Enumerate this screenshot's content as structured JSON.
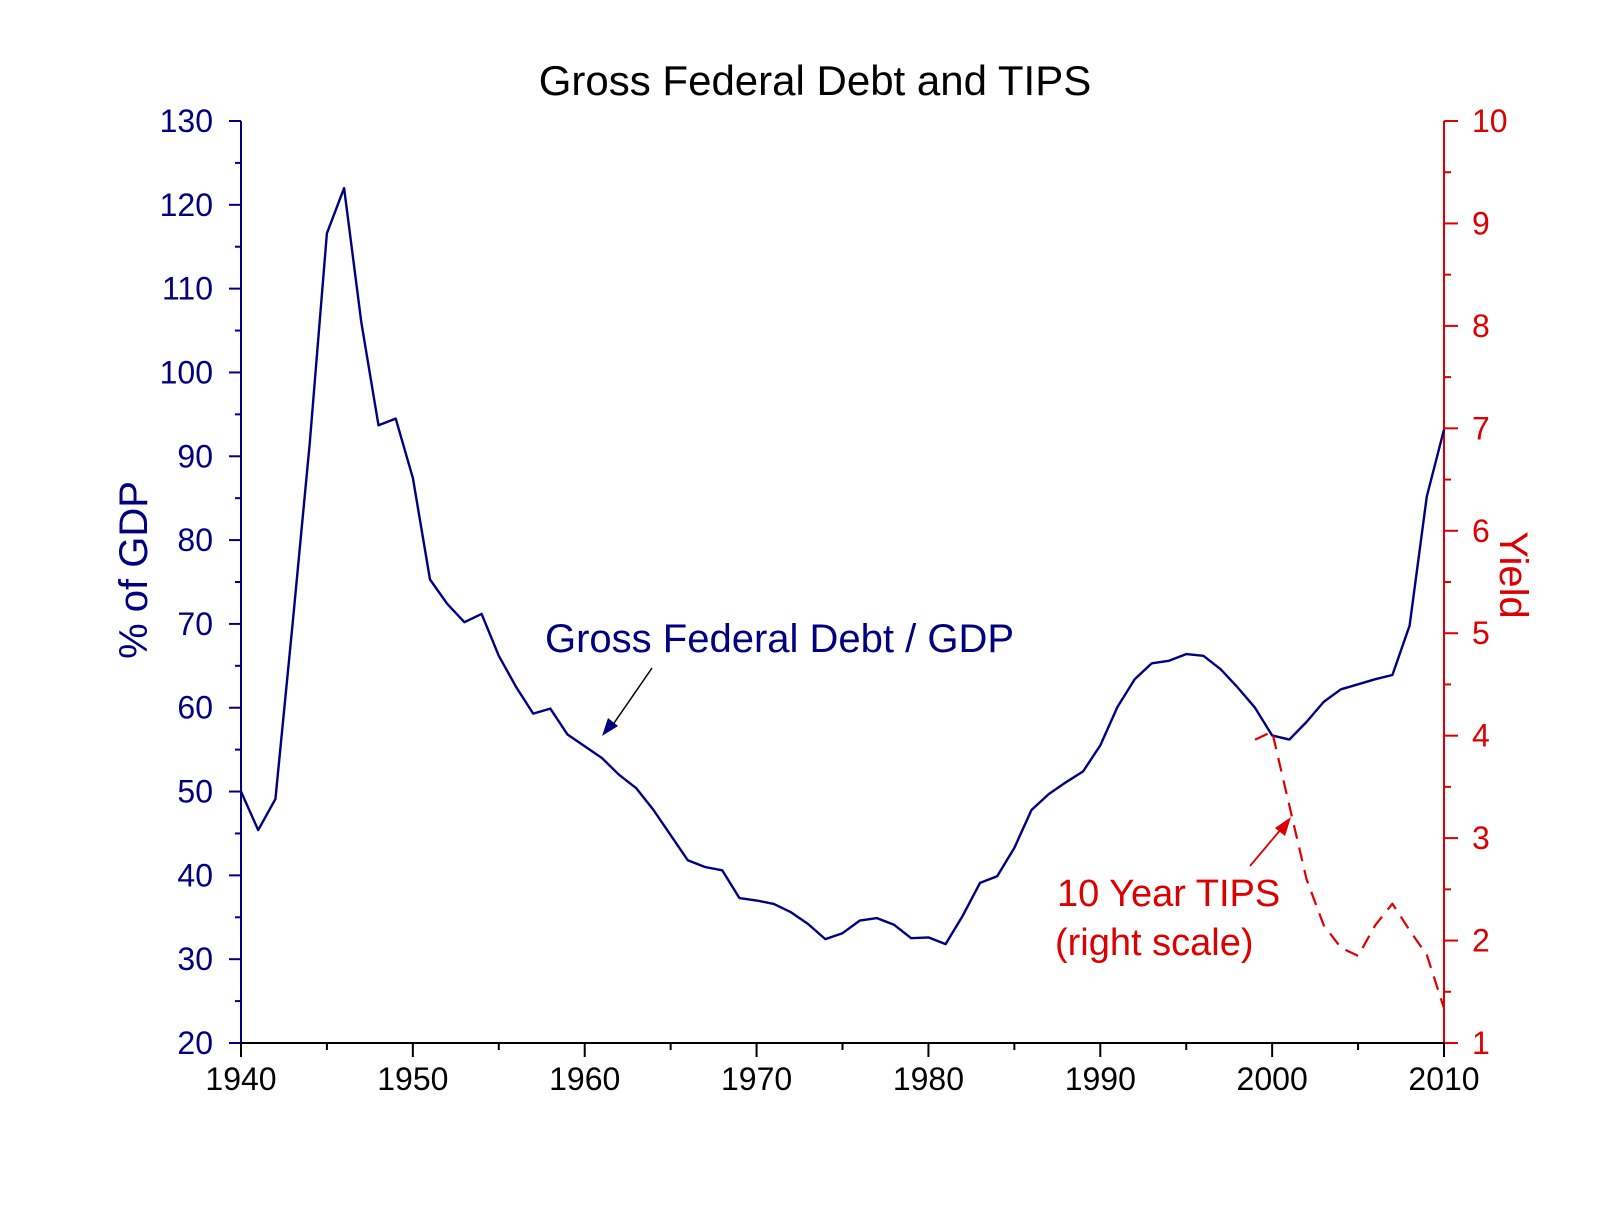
{
  "chart_data": {
    "type": "line",
    "title": "Gross Federal Debt and TIPS",
    "ylabel": "% of GDP",
    "y2label": "Yield",
    "xlim": [
      1940,
      2010
    ],
    "ylim": [
      20,
      130
    ],
    "y2lim": [
      1,
      10
    ],
    "x_ticks": [
      1940,
      1950,
      1960,
      1970,
      1980,
      1990,
      2000,
      2010
    ],
    "y_ticks": [
      20,
      30,
      40,
      50,
      60,
      70,
      80,
      90,
      100,
      110,
      120,
      130
    ],
    "y2_ticks": [
      1,
      2,
      3,
      4,
      5,
      6,
      7,
      8,
      9,
      10
    ],
    "colors": {
      "debt": "#000080",
      "tips": "#dd0000",
      "axis_x": "#000000"
    },
    "series": [
      {
        "axis": "left",
        "style": "solid",
        "x": [
          1940,
          1941,
          1942,
          1943,
          1944,
          1945,
          1946,
          1947,
          1948,
          1949,
          1950,
          1951,
          1952,
          1953,
          1954,
          1955,
          1956,
          1957,
          1958,
          1959,
          1960,
          1961,
          1962,
          1963,
          1964,
          1965,
          1966,
          1967,
          1968,
          1969,
          1970,
          1971,
          1972,
          1973,
          1974,
          1975,
          1976,
          1977,
          1978,
          1979,
          1980,
          1981,
          1982,
          1983,
          1984,
          1985,
          1986,
          1987,
          1988,
          1989,
          1990,
          1991,
          1992,
          1993,
          1994,
          1995,
          1996,
          1997,
          1998,
          1999,
          2000,
          2001,
          2002,
          2003,
          2004,
          2005,
          2006,
          2007,
          2008,
          2009,
          2010
        ],
        "values": [
          50.0,
          45.4,
          49.1,
          70.0,
          91.5,
          116.6,
          122.0,
          106.0,
          93.7,
          94.5,
          87.4,
          75.3,
          72.4,
          70.2,
          71.2,
          66.2,
          62.5,
          59.3,
          59.9,
          56.8,
          55.4,
          54.0,
          52.0,
          50.4,
          47.8,
          44.8,
          41.8,
          41.0,
          40.6,
          37.3,
          37.0,
          36.6,
          35.6,
          34.2,
          32.4,
          33.1,
          34.6,
          34.9,
          34.1,
          32.5,
          32.6,
          31.8,
          35.2,
          39.1,
          39.9,
          43.3,
          47.8,
          49.7,
          51.1,
          52.4,
          55.5,
          60.1,
          63.4,
          65.3,
          65.6,
          66.4,
          66.2,
          64.6,
          62.4,
          60.0,
          56.7,
          56.2,
          58.3,
          60.7,
          62.2,
          62.8,
          63.4,
          63.9,
          69.8,
          85.2,
          93.2
        ]
      },
      {
        "axis": "right",
        "style": "dashed",
        "x": [
          1999,
          2000,
          2001,
          2002,
          2003,
          2004,
          2005,
          2006,
          2007,
          2008,
          2009,
          2010
        ],
        "values": [
          3.96,
          4.04,
          3.32,
          2.6,
          2.15,
          1.93,
          1.85,
          2.15,
          2.36,
          2.1,
          1.86,
          1.34
        ]
      }
    ],
    "annotations": [
      {
        "text": "Gross Federal Debt / GDP"
      },
      {
        "text": "10 Year TIPS"
      },
      {
        "text": "(right scale)"
      }
    ]
  }
}
